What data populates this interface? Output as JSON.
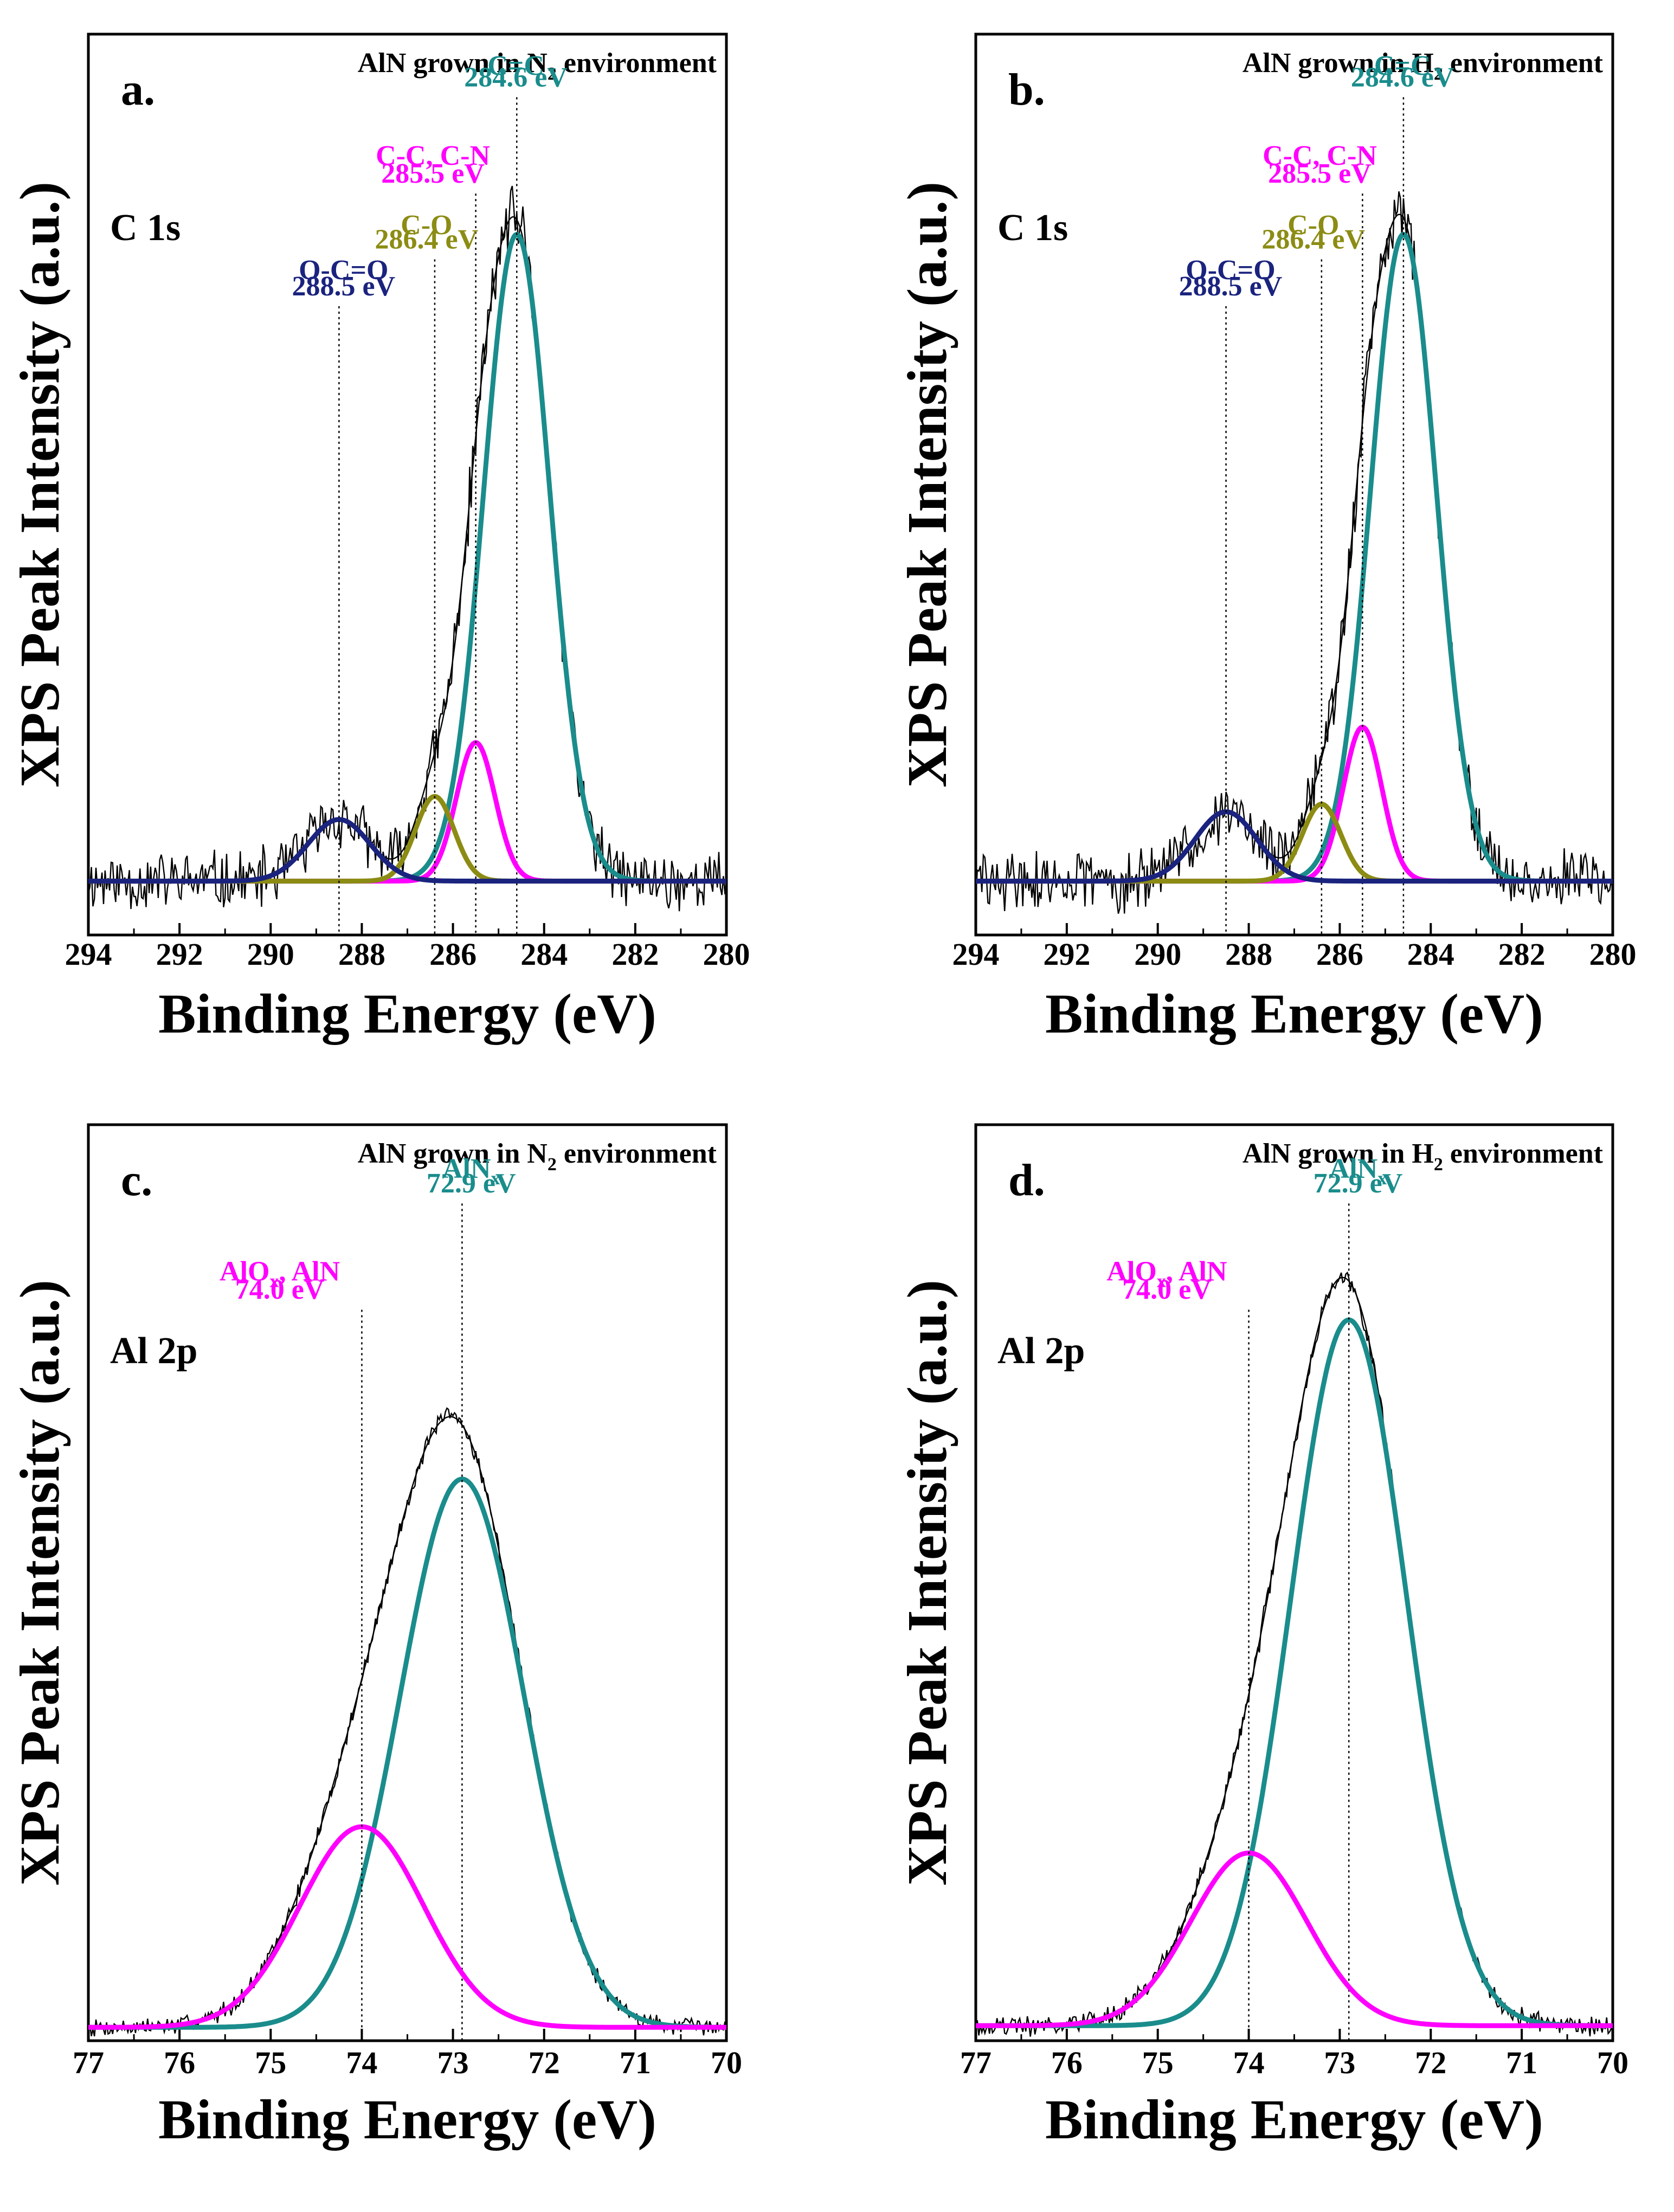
{
  "colors": {
    "teal": "#1a8c8c",
    "magenta": "#ff00ff",
    "olive": "#8c8c14",
    "navy": "#1a237e",
    "black": "#000000"
  },
  "chart_data": [
    {
      "type": "line",
      "panel_label": "a.",
      "title_main": "AlN grown in N",
      "title_sub": "2",
      "title_tail": " environment",
      "region": "C 1s",
      "xlabel": "Binding Energy (eV)",
      "ylabel": "XPS Peak Intensity (a.u.)",
      "xlim": [
        294,
        280
      ],
      "xticks": [
        294,
        292,
        290,
        288,
        286,
        284,
        282,
        280
      ],
      "ylim": [
        -0.07,
        1.1
      ],
      "noise_level": 0.035,
      "seed": 11,
      "peaks": [
        {
          "name": "C=C",
          "energy_label": "284.6 eV",
          "center": 284.6,
          "amplitude": 0.84,
          "fwhm": 1.7,
          "color": "teal"
        },
        {
          "name": "C-C, C-N",
          "energy_label": "285.5 eV",
          "center": 285.5,
          "amplitude": 0.18,
          "fwhm": 1.0,
          "color": "magenta"
        },
        {
          "name": "C-O",
          "energy_label": "286.4 eV",
          "center": 286.4,
          "amplitude": 0.11,
          "fwhm": 1.0,
          "color": "olive"
        },
        {
          "name": "O-C=O",
          "energy_label": "288.5 eV",
          "center": 288.5,
          "amplitude": 0.08,
          "fwhm": 1.6,
          "color": "navy"
        }
      ]
    },
    {
      "type": "line",
      "panel_label": "b.",
      "title_main": "AlN grown in H",
      "title_sub": "2",
      "title_tail": " environment",
      "region": "C 1s",
      "xlabel": "Binding Energy (eV)",
      "ylabel": "XPS Peak Intensity (a.u.)",
      "xlim": [
        294,
        280
      ],
      "xticks": [
        294,
        292,
        290,
        288,
        286,
        284,
        282,
        280
      ],
      "ylim": [
        -0.07,
        1.1
      ],
      "noise_level": 0.035,
      "seed": 29,
      "peaks": [
        {
          "name": "C=C",
          "energy_label": "284.6 eV",
          "center": 284.6,
          "amplitude": 0.84,
          "fwhm": 1.7,
          "color": "teal"
        },
        {
          "name": "C-C, C-N",
          "energy_label": "285.5 eV",
          "center": 285.5,
          "amplitude": 0.2,
          "fwhm": 1.0,
          "color": "magenta"
        },
        {
          "name": "C-O",
          "energy_label": "286.4 eV",
          "center": 286.4,
          "amplitude": 0.1,
          "fwhm": 1.0,
          "color": "olive"
        },
        {
          "name": "O-C=O",
          "energy_label": "288.5 eV",
          "center": 288.5,
          "amplitude": 0.09,
          "fwhm": 1.6,
          "color": "navy"
        }
      ]
    },
    {
      "type": "line",
      "panel_label": "c.",
      "title_main": "AlN grown in N",
      "title_sub": "2",
      "title_tail": " environment",
      "region": "Al 2p",
      "xlabel": "Binding Energy (eV)",
      "ylabel": "XPS Peak Intensity (a.u.)",
      "xlim": [
        77,
        70
      ],
      "xticks": [
        77,
        76,
        75,
        74,
        73,
        72,
        71,
        70
      ],
      "ylim": [
        -0.02,
        1.35
      ],
      "noise_level": 0.012,
      "seed": 7,
      "peaks": [
        {
          "name": "AlN",
          "name_sub": "x",
          "energy_label": "72.9 eV",
          "center": 72.9,
          "amplitude": 0.82,
          "fwhm": 1.6,
          "color": "teal"
        },
        {
          "name": "AlO",
          "name_sub": "x",
          "name_tail": ", AlN",
          "energy_label": "74.0 eV",
          "center": 74.0,
          "amplitude": 0.3,
          "fwhm": 1.6,
          "color": "magenta"
        }
      ]
    },
    {
      "type": "line",
      "panel_label": "d.",
      "title_main": "AlN grown in H",
      "title_sub": "2",
      "title_tail": " environment",
      "region": "Al 2p",
      "xlabel": "Binding Energy (eV)",
      "ylabel": "XPS Peak Intensity (a.u.)",
      "xlim": [
        77,
        70
      ],
      "xticks": [
        77,
        76,
        75,
        74,
        73,
        72,
        71,
        70
      ],
      "ylim": [
        -0.02,
        1.2
      ],
      "noise_level": 0.012,
      "seed": 19,
      "peaks": [
        {
          "name": "AlN",
          "name_sub": "x",
          "energy_label": "72.9 eV",
          "center": 72.9,
          "amplitude": 0.94,
          "fwhm": 1.5,
          "color": "teal"
        },
        {
          "name": "AlO",
          "name_sub": "x",
          "name_tail": ", AlN",
          "energy_label": "74.0 eV",
          "center": 74.0,
          "amplitude": 0.23,
          "fwhm": 1.5,
          "color": "magenta"
        }
      ]
    }
  ]
}
